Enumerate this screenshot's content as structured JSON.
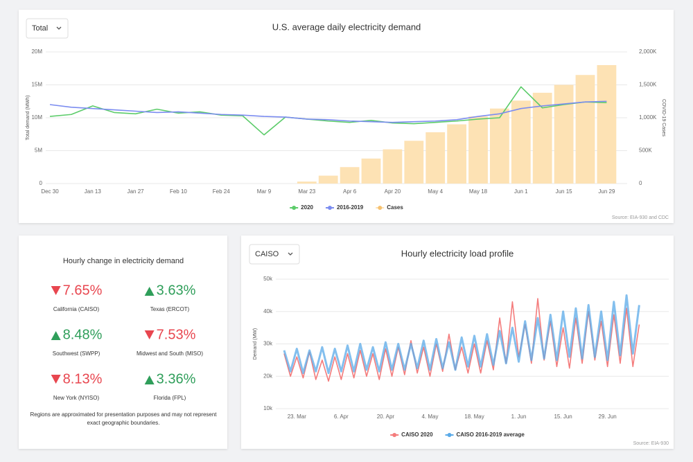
{
  "chart_data": [
    {
      "type": "line",
      "title": "U.S. average daily electricity demand",
      "selector": "Total",
      "ylabel": "Total demand (MWh)",
      "y2label": "COVID-19 Cases",
      "source": "Source: EIA-930 and CDC",
      "categories": [
        "Dec 30",
        null,
        "Jan 13",
        null,
        "Jan 27",
        null,
        "Feb 10",
        null,
        "Feb 24",
        null,
        "Mar 9",
        null,
        "Mar 23",
        null,
        "Apr 6",
        null,
        "Apr 20",
        null,
        "May 4",
        null,
        "May 18",
        null,
        "Jun 1",
        null,
        "Jun 15",
        null,
        "Jun 29"
      ],
      "series": [
        {
          "name": "2020",
          "color": "#5ccc6a",
          "values": [
            10200000,
            10500000,
            11800000,
            10800000,
            10600000,
            11300000,
            10700000,
            10900000,
            10400000,
            10300000,
            7400000,
            10100000,
            9800000,
            9500000,
            9300000,
            9600000,
            9200000,
            9100000,
            9300000,
            9500000,
            9800000,
            10000000,
            14700000,
            11500000,
            12000000,
            12400000,
            12300000
          ]
        },
        {
          "name": "2016-2019",
          "color": "#7b8cf0",
          "values": [
            12000000,
            11600000,
            11400000,
            11200000,
            11000000,
            10800000,
            10900000,
            10700000,
            10500000,
            10400000,
            10200000,
            10100000,
            9800000,
            9700000,
            9500000,
            9400000,
            9300000,
            9400000,
            9500000,
            9700000,
            10200000,
            10600000,
            11400000,
            11800000,
            12100000,
            12400000,
            12500000
          ]
        },
        {
          "name": "Cases",
          "color": "#fde2b4",
          "type": "bar",
          "axis": "y2",
          "values": [
            0,
            0,
            0,
            0,
            0,
            0,
            0,
            0,
            0,
            0,
            0,
            0,
            30000,
            120000,
            250000,
            380000,
            520000,
            650000,
            780000,
            900000,
            1020000,
            1140000,
            1260000,
            1380000,
            1500000,
            1650000,
            1800000
          ]
        }
      ],
      "ylim": [
        0,
        20000000
      ],
      "yticks": [
        0,
        {
          "value": 5000000,
          "label": "5M"
        },
        {
          "value": 10000000,
          "label": "10M"
        },
        {
          "value": 15000000,
          "label": "15M"
        },
        {
          "value": 20000000,
          "label": "20M"
        }
      ],
      "y2lim": [
        0,
        2000000
      ],
      "y2ticks": [
        0,
        {
          "value": 500000,
          "label": "500K"
        },
        {
          "value": 1000000,
          "label": "1,000K"
        },
        {
          "value": 1500000,
          "label": "1,500K"
        },
        {
          "value": 2000000,
          "label": "2,000K"
        }
      ],
      "grid": true,
      "legend": "bottom"
    },
    {
      "type": "line",
      "title": "Hourly electricity load profile",
      "selector": "CAISO",
      "ylabel": "Demand (MW)",
      "source": "Source: EIA-930",
      "categories": [
        null,
        null,
        "23. Mar",
        null,
        null,
        null,
        null,
        null,
        null,
        "6. Apr",
        null,
        null,
        null,
        null,
        null,
        null,
        "20. Apr",
        null,
        null,
        null,
        null,
        null,
        null,
        "4. May",
        null,
        null,
        null,
        null,
        null,
        null,
        "18. May",
        null,
        null,
        null,
        null,
        null,
        null,
        "1. Jun",
        null,
        null,
        null,
        null,
        null,
        null,
        "15. Jun",
        null,
        null,
        null,
        null,
        null,
        null,
        "29. Jun",
        null,
        null,
        null,
        null,
        null
      ],
      "series": [
        {
          "name": "CAISO 2020",
          "color": "#f47c7c",
          "values": [
            27000,
            20000,
            26000,
            19500,
            27500,
            19000,
            25000,
            18500,
            26000,
            19000,
            27000,
            19500,
            28000,
            20000,
            27000,
            19000,
            28500,
            20000,
            29000,
            20500,
            31000,
            21000,
            29000,
            20000,
            30000,
            21500,
            33000,
            22000,
            29000,
            21000,
            30000,
            21000,
            31000,
            22000,
            38000,
            24000,
            43000,
            26000,
            36000,
            24000,
            44000,
            25000,
            37000,
            23000,
            35000,
            22500,
            38000,
            24000,
            40000,
            25000,
            37000,
            23000,
            39000,
            24000,
            41000,
            23000,
            36000
          ]
        },
        {
          "name": "CAISO 2016-2019 average",
          "color": "#5aaae8",
          "values": [
            28000,
            21500,
            28500,
            21000,
            28000,
            21500,
            29000,
            21000,
            28500,
            21500,
            29500,
            21500,
            30000,
            22000,
            29000,
            21500,
            30500,
            22000,
            30000,
            22000,
            30000,
            22500,
            31000,
            22000,
            31500,
            22500,
            30500,
            22000,
            32000,
            23000,
            32500,
            23000,
            33000,
            23500,
            34000,
            24000,
            35000,
            24500,
            37000,
            25000,
            38000,
            25500,
            39000,
            25000,
            40000,
            26000,
            41000,
            25500,
            42000,
            26000,
            40000,
            25000,
            43000,
            26500,
            45000,
            27000,
            42000
          ]
        }
      ],
      "ylim": [
        10000,
        50000
      ],
      "yticks": [
        {
          "value": 10000,
          "label": "10k"
        },
        {
          "value": 20000,
          "label": "20k"
        },
        {
          "value": 30000,
          "label": "30k"
        },
        {
          "value": 40000,
          "label": "40k"
        },
        {
          "value": 50000,
          "label": "50k"
        }
      ],
      "grid": true,
      "legend": "bottom"
    }
  ],
  "stats": {
    "title": "Hourly change in electricity demand",
    "items": [
      {
        "value": "7.65%",
        "direction": "down",
        "region": "California (CAISO)"
      },
      {
        "value": "3.63%",
        "direction": "up",
        "region": "Texas (ERCOT)"
      },
      {
        "value": "8.48%",
        "direction": "up",
        "region": "Southwest (SWPP)"
      },
      {
        "value": "7.53%",
        "direction": "down",
        "region": "Midwest and South (MISO)"
      },
      {
        "value": "8.13%",
        "direction": "down",
        "region": "New York (NYISO)"
      },
      {
        "value": "3.36%",
        "direction": "up",
        "region": "Florida (FPL)"
      }
    ],
    "note": "Regions are approximated for presentation purposes and may not represent exact geographic boundaries."
  }
}
